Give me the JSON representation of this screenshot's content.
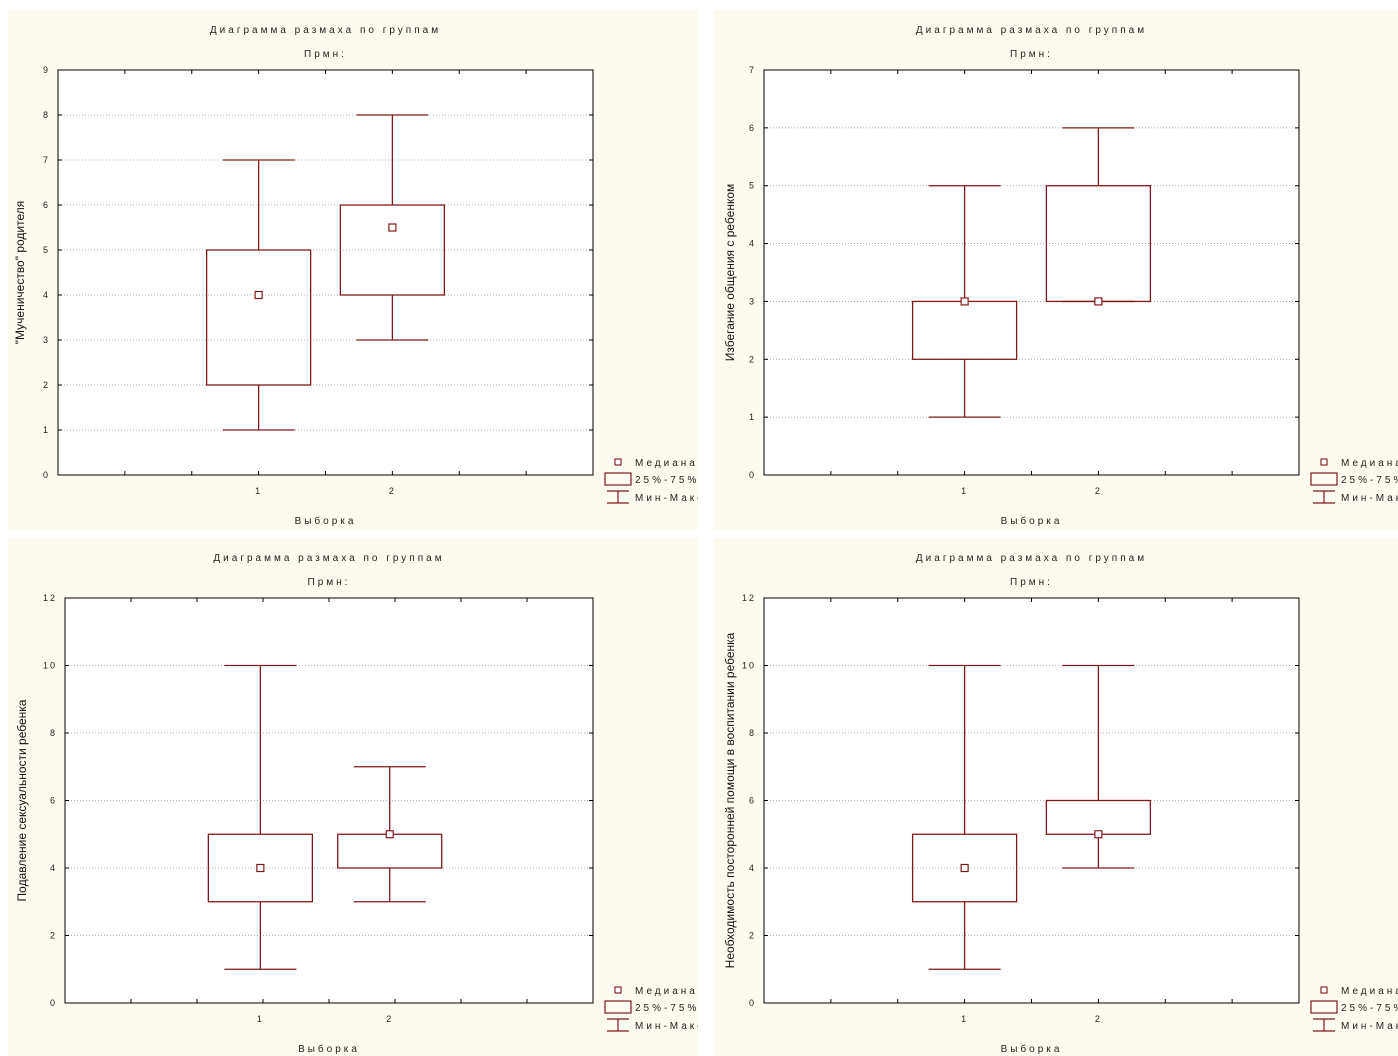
{
  "colors": {
    "background": "#fdfaf0",
    "plot_bg": "#ffffff",
    "series": "#7f1a1a",
    "grid": "#9a9a9a",
    "frame": "#000000"
  },
  "legend": {
    "median": "Медиана",
    "range_iqr": "25%-75%",
    "range_minmax": "Мин-Макс"
  },
  "chart_data": [
    {
      "type": "boxplot",
      "title": "Диаграмма размаха по группам",
      "subtitle": "Прмн:",
      "xlabel": "Выборка",
      "ylabel": "\"Мученичество\" родителя",
      "ylim": [
        0,
        9
      ],
      "yticks": [
        "0",
        "1",
        "2",
        "3",
        "4",
        "5",
        "6",
        "7",
        "8",
        "9"
      ],
      "categories": [
        "1",
        "2"
      ],
      "boxes": [
        {
          "category": "1",
          "min": 1,
          "q1": 2,
          "median": 4,
          "q3": 5,
          "max": 7
        },
        {
          "category": "2",
          "min": 3,
          "q1": 4,
          "median": 5.5,
          "q3": 6,
          "max": 8
        }
      ],
      "grid": true,
      "legend_position": "bottom-right"
    },
    {
      "type": "boxplot",
      "title": "Диаграмма размаха по группам",
      "subtitle": "Прмн:",
      "xlabel": "Выборка",
      "ylabel": "Избегание общения с ребенком",
      "ylim": [
        0,
        7
      ],
      "yticks": [
        "0",
        "1",
        "2",
        "3",
        "4",
        "5",
        "6",
        "7"
      ],
      "categories": [
        "1",
        "2"
      ],
      "boxes": [
        {
          "category": "1",
          "min": 1,
          "q1": 2,
          "median": 3,
          "q3": 3,
          "max": 5
        },
        {
          "category": "2",
          "min": 3,
          "q1": 3,
          "median": 3,
          "q3": 5,
          "max": 6
        }
      ],
      "grid": true,
      "legend_position": "bottom-right"
    },
    {
      "type": "boxplot",
      "title": "Диаграмма размаха по группам",
      "subtitle": "Прмн:",
      "xlabel": "Выборка",
      "ylabel": "Подавление сексуальности ребенка",
      "ylim": [
        0,
        12
      ],
      "yticks": [
        "0",
        "2",
        "4",
        "6",
        "8",
        "10",
        "12"
      ],
      "categories": [
        "1",
        "2"
      ],
      "boxes": [
        {
          "category": "1",
          "min": 1,
          "q1": 3,
          "median": 4,
          "q3": 5,
          "max": 10
        },
        {
          "category": "2",
          "min": 3,
          "q1": 4,
          "median": 5,
          "q3": 5,
          "max": 7
        }
      ],
      "grid": true,
      "legend_position": "bottom-right"
    },
    {
      "type": "boxplot",
      "title": "Диаграмма размаха по группам",
      "subtitle": "Прмн:",
      "xlabel": "Выборка",
      "ylabel": "Необходимость посторонней помощи в воспитании ребенка",
      "ylim": [
        0,
        12
      ],
      "yticks": [
        "0",
        "2",
        "4",
        "6",
        "8",
        "10",
        "12"
      ],
      "categories": [
        "1",
        "2"
      ],
      "boxes": [
        {
          "category": "1",
          "min": 1,
          "q1": 3,
          "median": 4,
          "q3": 5,
          "max": 10
        },
        {
          "category": "2",
          "min": 4,
          "q1": 5,
          "median": 5,
          "q3": 6,
          "max": 10
        }
      ],
      "grid": true,
      "legend_position": "bottom-right"
    }
  ]
}
